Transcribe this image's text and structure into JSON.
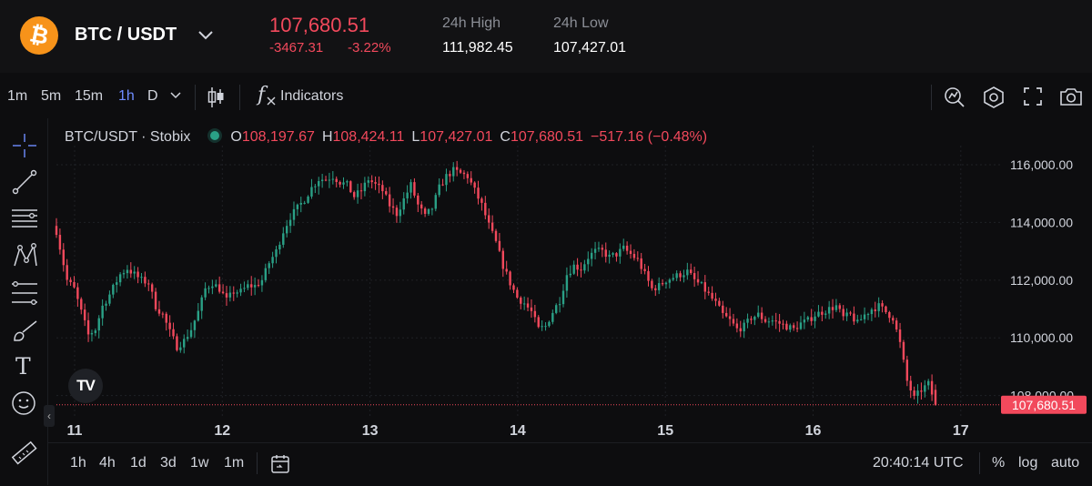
{
  "header": {
    "coin_glyph": "₿",
    "pair": "BTC / USDT",
    "price": "107,680.51",
    "change": "-3467.31",
    "change_pct": "-3.22%",
    "high_label": "24h High",
    "high_value": "111,982.45",
    "low_label": "24h Low",
    "low_value": "107,427.01",
    "accent_down": "#f2495c",
    "accent_up": "#2aa086",
    "coin_color": "#f7931a"
  },
  "toolbar": {
    "intervals": [
      "1m",
      "5m",
      "15m",
      "1h",
      "D"
    ],
    "active_interval": "1h",
    "indicators_label": "Indicators",
    "fx_glyph": "f",
    "icons": [
      "chevron-down-icon",
      "candles-icon",
      "indicators-icon",
      "alert-icon",
      "settings-icon",
      "fullscreen-icon",
      "camera-icon"
    ]
  },
  "drawing_tools": [
    "crosshair-icon",
    "trendline-icon",
    "horizontal-lines-icon",
    "pattern-icon",
    "fib-icon",
    "brush-icon",
    "text-icon",
    "emoji-icon",
    "ruler-icon"
  ],
  "text_tool_glyph": "T",
  "legend": {
    "symbol": "BTC/USDT · Stobix",
    "o_label": "O",
    "o_value": "108,197.67",
    "h_label": "H",
    "h_value": "108,424.11",
    "l_label": "L",
    "l_value": "107,427.01",
    "c_label": "C",
    "c_value": "107,680.51",
    "change": "−517.16 (−0.48%)"
  },
  "logo_text": "TV",
  "collapse_glyph": "‹",
  "chart_data": {
    "type": "candlestick",
    "ylim": [
      107200,
      116600
    ],
    "y_ticks": [
      "116,000.00",
      "114,000.00",
      "112,000.00",
      "110,000.00",
      "108,000.00"
    ],
    "y_tick_values": [
      116000,
      114000,
      112000,
      110000,
      108000
    ],
    "x_ticks": [
      "11",
      "12",
      "13",
      "14",
      "15",
      "16",
      "17"
    ],
    "last_price": 107680.51,
    "last_price_label": "107,680.51",
    "anchors": [
      [
        0,
        113700
      ],
      [
        3,
        112000
      ],
      [
        5,
        111700
      ],
      [
        7,
        110900
      ],
      [
        9,
        110100
      ],
      [
        11,
        110300
      ],
      [
        13,
        111100
      ],
      [
        15,
        111500
      ],
      [
        18,
        112200
      ],
      [
        20,
        112400
      ],
      [
        22,
        112200
      ],
      [
        24,
        112000
      ],
      [
        26,
        111900
      ],
      [
        28,
        111100
      ],
      [
        30,
        110800
      ],
      [
        32,
        110200
      ],
      [
        34,
        109700
      ],
      [
        36,
        109900
      ],
      [
        38,
        110300
      ],
      [
        40,
        110900
      ],
      [
        42,
        111700
      ],
      [
        44,
        111900
      ],
      [
        46,
        111700
      ],
      [
        48,
        111300
      ],
      [
        50,
        111600
      ],
      [
        52,
        111600
      ],
      [
        54,
        111800
      ],
      [
        56,
        111800
      ],
      [
        58,
        112000
      ],
      [
        60,
        112600
      ],
      [
        62,
        113000
      ],
      [
        64,
        113700
      ],
      [
        66,
        114200
      ],
      [
        68,
        114500
      ],
      [
        70,
        114800
      ],
      [
        72,
        115200
      ],
      [
        74,
        115500
      ],
      [
        76,
        115500
      ],
      [
        78,
        115600
      ],
      [
        80,
        115400
      ],
      [
        82,
        115300
      ],
      [
        84,
        114900
      ],
      [
        86,
        115100
      ],
      [
        88,
        115500
      ],
      [
        90,
        115300
      ],
      [
        92,
        115100
      ],
      [
        94,
        114600
      ],
      [
        96,
        114300
      ],
      [
        98,
        114800
      ],
      [
        100,
        115300
      ],
      [
        102,
        114600
      ],
      [
        104,
        114200
      ],
      [
        106,
        114500
      ],
      [
        108,
        115200
      ],
      [
        110,
        115600
      ],
      [
        112,
        115800
      ],
      [
        114,
        115700
      ],
      [
        116,
        115600
      ],
      [
        118,
        115100
      ],
      [
        120,
        114600
      ],
      [
        122,
        113900
      ],
      [
        124,
        113300
      ],
      [
        126,
        112500
      ],
      [
        128,
        111900
      ],
      [
        130,
        111400
      ],
      [
        132,
        111200
      ],
      [
        134,
        110900
      ],
      [
        136,
        110300
      ],
      [
        138,
        110400
      ],
      [
        140,
        110900
      ],
      [
        142,
        111300
      ],
      [
        144,
        112200
      ],
      [
        146,
        112500
      ],
      [
        148,
        112400
      ],
      [
        150,
        112800
      ],
      [
        152,
        113000
      ],
      [
        154,
        113000
      ],
      [
        156,
        112800
      ],
      [
        158,
        112900
      ],
      [
        160,
        113100
      ],
      [
        162,
        112900
      ],
      [
        164,
        112700
      ],
      [
        166,
        112200
      ],
      [
        168,
        111700
      ],
      [
        170,
        111800
      ],
      [
        172,
        112000
      ],
      [
        174,
        112100
      ],
      [
        176,
        112200
      ],
      [
        178,
        112300
      ],
      [
        180,
        112000
      ],
      [
        182,
        111800
      ],
      [
        184,
        111500
      ],
      [
        186,
        111200
      ],
      [
        188,
        110800
      ],
      [
        190,
        110600
      ],
      [
        192,
        110300
      ],
      [
        194,
        110400
      ],
      [
        196,
        110700
      ],
      [
        198,
        110800
      ],
      [
        200,
        110600
      ],
      [
        202,
        110600
      ],
      [
        204,
        110500
      ],
      [
        206,
        110400
      ],
      [
        208,
        110300
      ],
      [
        210,
        110500
      ],
      [
        212,
        110600
      ],
      [
        214,
        110800
      ],
      [
        216,
        110900
      ],
      [
        218,
        111000
      ],
      [
        220,
        111100
      ],
      [
        222,
        110700
      ],
      [
        224,
        110800
      ],
      [
        226,
        110500
      ],
      [
        228,
        110800
      ],
      [
        230,
        111000
      ],
      [
        232,
        111100
      ],
      [
        234,
        110900
      ],
      [
        236,
        110700
      ],
      [
        238,
        109800
      ],
      [
        240,
        108500
      ],
      [
        242,
        107900
      ],
      [
        244,
        108200
      ],
      [
        246,
        108400
      ],
      [
        248,
        107700
      ]
    ]
  },
  "bottom": {
    "ranges": [
      "1h",
      "4h",
      "1d",
      "3d",
      "1w",
      "1m"
    ],
    "time": "20:40:14 UTC",
    "pct": "%",
    "log": "log",
    "auto": "auto"
  }
}
